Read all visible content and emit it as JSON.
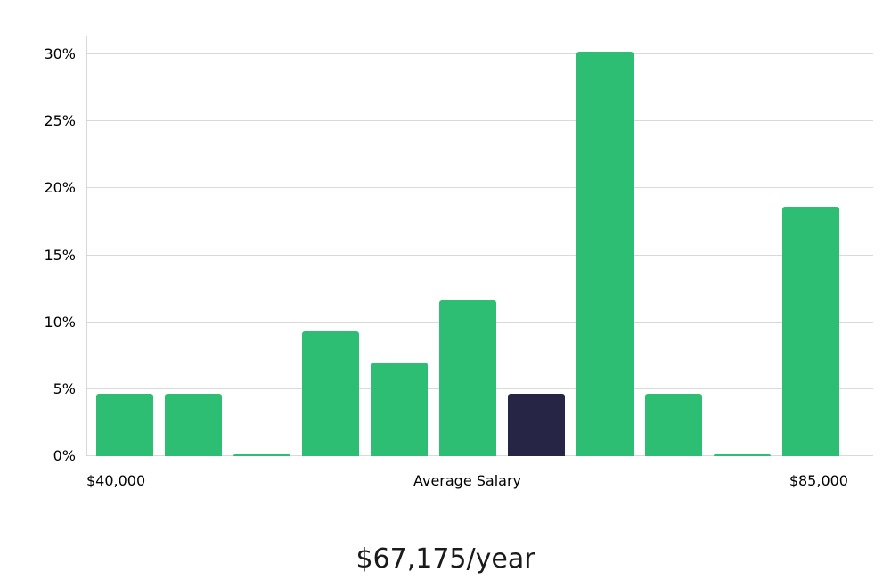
{
  "chart_data": {
    "type": "bar",
    "title": "$67,175/year",
    "xlabel": "",
    "ylabel": "",
    "values": [
      4.65,
      4.65,
      0.12,
      9.3,
      6.98,
      11.63,
      4.65,
      30.23,
      4.65,
      0.12,
      18.6
    ],
    "highlight_index": 6,
    "bar_color": "#2dbe73",
    "highlight_color": "#262546",
    "grid_color": "#d9d9d9",
    "ylim": [
      0,
      30
    ],
    "ytick_values": [
      0,
      5,
      10,
      15,
      20,
      25,
      30
    ],
    "yticks": [
      "0%",
      "5%",
      "10%",
      "15%",
      "20%",
      "25%",
      "30%"
    ],
    "xlabels": {
      "left": "$40,000",
      "center": "Average Salary",
      "right": "$85,000"
    },
    "grid": true,
    "legend": false
  }
}
